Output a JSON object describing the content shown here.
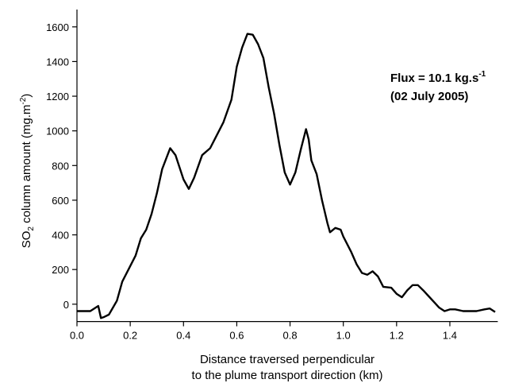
{
  "chart_data": {
    "type": "line",
    "y_label": [
      "SO",
      "2",
      " column amount (mg.m",
      "-2",
      ")"
    ],
    "x_label": [
      "Distance traversed perpendicular",
      "to the plume transport direction (km)"
    ],
    "annotation": {
      "line1": [
        "Flux = 10.1 kg.s",
        "-1"
      ],
      "line2": "(02 July 2005)"
    },
    "x": [
      0,
      0.05,
      0.08,
      0.09,
      0.1,
      0.12,
      0.15,
      0.17,
      0.2,
      0.22,
      0.24,
      0.26,
      0.28,
      0.3,
      0.32,
      0.35,
      0.37,
      0.4,
      0.42,
      0.44,
      0.47,
      0.5,
      0.52,
      0.55,
      0.58,
      0.6,
      0.62,
      0.64,
      0.66,
      0.68,
      0.7,
      0.72,
      0.74,
      0.76,
      0.78,
      0.8,
      0.82,
      0.84,
      0.86,
      0.87,
      0.88,
      0.9,
      0.92,
      0.94,
      0.95,
      0.97,
      0.99,
      1.0,
      1.03,
      1.05,
      1.07,
      1.09,
      1.11,
      1.13,
      1.15,
      1.18,
      1.2,
      1.22,
      1.24,
      1.26,
      1.28,
      1.3,
      1.33,
      1.36,
      1.38,
      1.4,
      1.42,
      1.45,
      1.5,
      1.53,
      1.55,
      1.57
    ],
    "series": [
      {
        "color": "#000000",
        "values": [
          -40,
          -40,
          -10,
          -80,
          -75,
          -60,
          20,
          130,
          220,
          280,
          380,
          430,
          520,
          640,
          780,
          900,
          860,
          720,
          665,
          730,
          860,
          900,
          960,
          1050,
          1180,
          1370,
          1480,
          1560,
          1555,
          1500,
          1420,
          1250,
          1100,
          920,
          760,
          690,
          760,
          890,
          1010,
          950,
          830,
          750,
          600,
          470,
          415,
          440,
          430,
          390,
          300,
          230,
          180,
          170,
          190,
          160,
          100,
          95,
          60,
          40,
          80,
          110,
          110,
          80,
          30,
          -20,
          -40,
          -30,
          -30,
          -40,
          -40,
          -30,
          -25,
          -45
        ]
      }
    ],
    "xlim": [
      0,
      1.58
    ],
    "ylim": [
      -100,
      1700
    ],
    "xticks": [
      {
        "value": 0,
        "label": "0.0"
      },
      0.2,
      0.4,
      0.6,
      0.8,
      {
        "value": 1,
        "label": "1.0"
      },
      1.2,
      1.4
    ],
    "yticks": [
      0,
      200,
      400,
      600,
      800,
      1000,
      1200,
      1400,
      1600
    ]
  }
}
